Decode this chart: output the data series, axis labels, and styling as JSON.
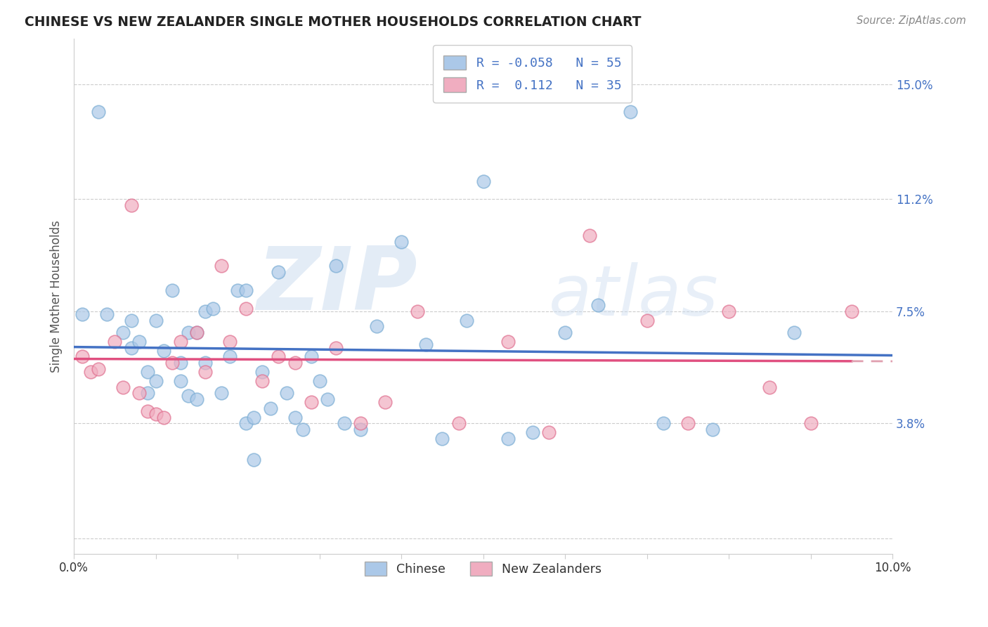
{
  "title": "CHINESE VS NEW ZEALANDER SINGLE MOTHER HOUSEHOLDS CORRELATION CHART",
  "source": "Source: ZipAtlas.com",
  "ylabel": "Single Mother Households",
  "y_ticks": [
    0.0,
    0.038,
    0.075,
    0.112,
    0.15
  ],
  "y_tick_labels": [
    "",
    "3.8%",
    "7.5%",
    "11.2%",
    "15.0%"
  ],
  "x_range": [
    0.0,
    0.1
  ],
  "y_range": [
    -0.005,
    0.165
  ],
  "legend_r_chinese": "R = -0.058",
  "legend_n_chinese": "N = 55",
  "legend_r_nz": "R =  0.112",
  "legend_n_nz": "N = 35",
  "watermark_zip": "ZIP",
  "watermark_atlas": "atlas",
  "chinese_color": "#abc8e8",
  "chinese_edge_color": "#7badd4",
  "nz_color": "#f0adc0",
  "nz_edge_color": "#e07090",
  "chinese_line_color": "#4472c4",
  "nz_line_color": "#e05080",
  "nz_dash_color": "#e0a0b0",
  "background_color": "#ffffff",
  "grid_color": "#cccccc",
  "chinese_x": [
    0.001,
    0.003,
    0.004,
    0.006,
    0.007,
    0.007,
    0.008,
    0.009,
    0.009,
    0.01,
    0.01,
    0.011,
    0.012,
    0.013,
    0.013,
    0.014,
    0.014,
    0.015,
    0.015,
    0.016,
    0.016,
    0.017,
    0.018,
    0.019,
    0.02,
    0.021,
    0.021,
    0.022,
    0.022,
    0.023,
    0.024,
    0.025,
    0.026,
    0.027,
    0.028,
    0.029,
    0.03,
    0.031,
    0.032,
    0.033,
    0.035,
    0.037,
    0.04,
    0.043,
    0.045,
    0.048,
    0.05,
    0.053,
    0.056,
    0.06,
    0.064,
    0.068,
    0.072,
    0.078,
    0.088
  ],
  "chinese_y": [
    0.074,
    0.141,
    0.074,
    0.068,
    0.072,
    0.063,
    0.065,
    0.055,
    0.048,
    0.052,
    0.072,
    0.062,
    0.082,
    0.058,
    0.052,
    0.047,
    0.068,
    0.046,
    0.068,
    0.058,
    0.075,
    0.076,
    0.048,
    0.06,
    0.082,
    0.038,
    0.082,
    0.04,
    0.026,
    0.055,
    0.043,
    0.088,
    0.048,
    0.04,
    0.036,
    0.06,
    0.052,
    0.046,
    0.09,
    0.038,
    0.036,
    0.07,
    0.098,
    0.064,
    0.033,
    0.072,
    0.118,
    0.033,
    0.035,
    0.068,
    0.077,
    0.141,
    0.038,
    0.036,
    0.068
  ],
  "nz_x": [
    0.001,
    0.002,
    0.003,
    0.005,
    0.006,
    0.007,
    0.008,
    0.009,
    0.01,
    0.011,
    0.012,
    0.013,
    0.015,
    0.016,
    0.018,
    0.019,
    0.021,
    0.023,
    0.025,
    0.027,
    0.029,
    0.032,
    0.035,
    0.038,
    0.042,
    0.047,
    0.053,
    0.058,
    0.063,
    0.07,
    0.075,
    0.08,
    0.085,
    0.09,
    0.095
  ],
  "nz_y": [
    0.06,
    0.055,
    0.056,
    0.065,
    0.05,
    0.11,
    0.048,
    0.042,
    0.041,
    0.04,
    0.058,
    0.065,
    0.068,
    0.055,
    0.09,
    0.065,
    0.076,
    0.052,
    0.06,
    0.058,
    0.045,
    0.063,
    0.038,
    0.045,
    0.075,
    0.038,
    0.065,
    0.035,
    0.1,
    0.072,
    0.038,
    0.075,
    0.05,
    0.038,
    0.075
  ]
}
